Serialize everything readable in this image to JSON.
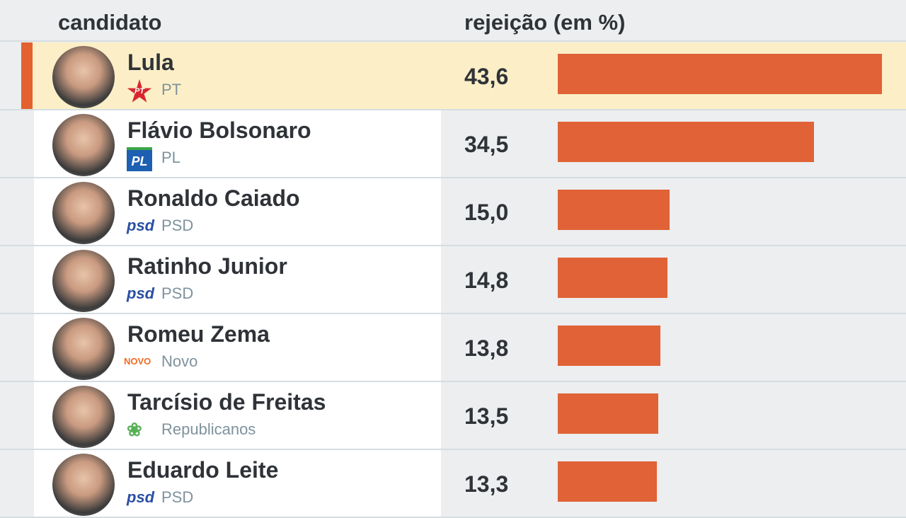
{
  "header": {
    "col_candidate": "candidato",
    "col_rejection": "rejeição (em %)"
  },
  "colors": {
    "bar": "#e06236",
    "highlight": "#fcefc7",
    "accent": "#e2612f"
  },
  "rows": [
    {
      "name": "Lula",
      "party": "PT",
      "logo": "PT",
      "value": "43,6",
      "highlight": true
    },
    {
      "name": "Flávio Bolsonaro",
      "party": "PL",
      "logo": "PL",
      "value": "34,5"
    },
    {
      "name": "Ronaldo Caiado",
      "party": "PSD",
      "logo": "psd",
      "value": "15,0"
    },
    {
      "name": "Ratinho Junior",
      "party": "PSD",
      "logo": "psd",
      "value": "14,8"
    },
    {
      "name": "Romeu Zema",
      "party": "Novo",
      "logo": "NOVO",
      "value": "13,8"
    },
    {
      "name": "Tarcísio de Freitas",
      "party": "Republicanos",
      "logo": "❀",
      "value": "13,5"
    },
    {
      "name": "Eduardo Leite",
      "party": "PSD",
      "logo": "psd",
      "value": "13,3"
    }
  ],
  "chart_data": {
    "type": "bar",
    "orientation": "horizontal",
    "title": "",
    "xlabel": "rejeição (em %)",
    "ylabel": "candidato",
    "categories": [
      "Lula",
      "Flávio Bolsonaro",
      "Ronaldo Caiado",
      "Ratinho Junior",
      "Romeu Zema",
      "Tarcísio de Freitas",
      "Eduardo Leite"
    ],
    "parties": [
      "PT",
      "PL",
      "PSD",
      "PSD",
      "Novo",
      "Republicanos",
      "PSD"
    ],
    "values": [
      43.6,
      34.5,
      15.0,
      14.8,
      13.8,
      13.5,
      13.3
    ],
    "grid": false
  }
}
